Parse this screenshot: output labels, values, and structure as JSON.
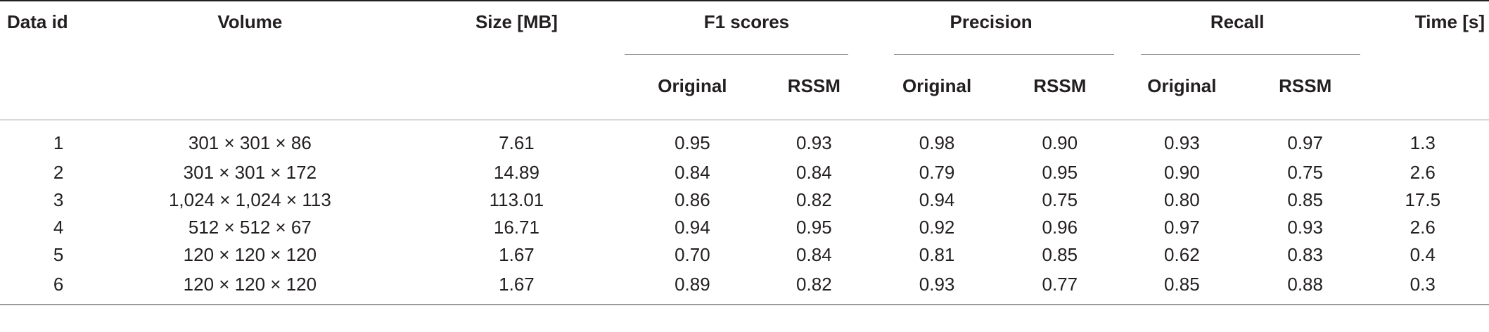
{
  "table": {
    "headers": {
      "data_id": "Data id",
      "volume": "Volume",
      "size": "Size [MB]",
      "f1": "F1 scores",
      "precision": "Precision",
      "recall": "Recall",
      "time": "Time [s]",
      "original": "Original",
      "rssm": "RSSM"
    },
    "rows": [
      {
        "id": "1",
        "volume": "301 × 301 × 86",
        "size": "7.61",
        "f1_orig": "0.95",
        "f1_rssm": "0.93",
        "prec_orig": "0.98",
        "prec_rssm": "0.90",
        "rec_orig": "0.93",
        "rec_rssm": "0.97",
        "time": "1.3"
      },
      {
        "id": "2",
        "volume": "301 × 301 × 172",
        "size": "14.89",
        "f1_orig": "0.84",
        "f1_rssm": "0.84",
        "prec_orig": "0.79",
        "prec_rssm": "0.95",
        "rec_orig": "0.90",
        "rec_rssm": "0.75",
        "time": "2.6"
      },
      {
        "id": "3",
        "volume": "1,024 × 1,024 × 113",
        "size": "113.01",
        "f1_orig": "0.86",
        "f1_rssm": "0.82",
        "prec_orig": "0.94",
        "prec_rssm": "0.75",
        "rec_orig": "0.80",
        "rec_rssm": "0.85",
        "time": "17.5"
      },
      {
        "id": "4",
        "volume": "512 × 512 × 67",
        "size": "16.71",
        "f1_orig": "0.94",
        "f1_rssm": "0.95",
        "prec_orig": "0.92",
        "prec_rssm": "0.96",
        "rec_orig": "0.97",
        "rec_rssm": "0.93",
        "time": "2.6"
      },
      {
        "id": "5",
        "volume": "120 × 120 × 120",
        "size": "1.67",
        "f1_orig": "0.70",
        "f1_rssm": "0.84",
        "prec_orig": "0.81",
        "prec_rssm": "0.85",
        "rec_orig": "0.62",
        "rec_rssm": "0.83",
        "time": "0.4"
      },
      {
        "id": "6",
        "volume": "120 × 120 × 120",
        "size": "1.67",
        "f1_orig": "0.89",
        "f1_rssm": "0.82",
        "prec_orig": "0.93",
        "prec_rssm": "0.77",
        "rec_orig": "0.85",
        "rec_rssm": "0.88",
        "time": "0.3"
      }
    ]
  }
}
